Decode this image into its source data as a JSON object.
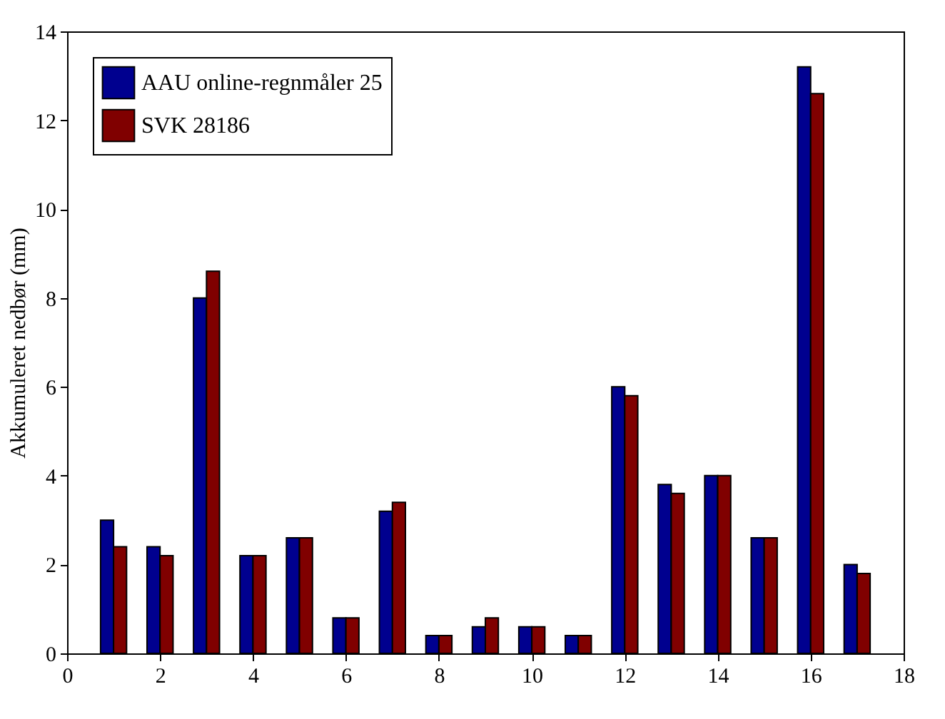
{
  "chart_data": {
    "type": "bar",
    "ylabel": "Akkumuleret nedbør (mm)",
    "x": [
      1,
      2,
      3,
      4,
      5,
      6,
      7,
      8,
      9,
      10,
      11,
      12,
      13,
      14,
      15,
      16,
      17
    ],
    "series": [
      {
        "name": "AAU online-regnmåler 25",
        "color": "#00008f",
        "values": [
          3.0,
          2.4,
          8.0,
          2.2,
          2.6,
          0.8,
          3.2,
          0.4,
          0.6,
          0.6,
          0.4,
          6.0,
          3.8,
          4.0,
          2.6,
          13.2,
          2.0
        ]
      },
      {
        "name": "SVK 28186",
        "color": "#800000",
        "values": [
          2.4,
          2.2,
          8.6,
          2.2,
          2.6,
          0.8,
          3.4,
          0.4,
          0.8,
          0.6,
          0.4,
          5.8,
          3.6,
          4.0,
          2.6,
          12.6,
          1.8
        ]
      }
    ],
    "xlim": [
      0,
      18
    ],
    "xticks": [
      0,
      2,
      4,
      6,
      8,
      10,
      12,
      14,
      16,
      18
    ],
    "ylim": [
      0,
      14
    ],
    "yticks": [
      0,
      2,
      4,
      6,
      8,
      10,
      12,
      14
    ],
    "grid": false,
    "legend": "top left"
  }
}
